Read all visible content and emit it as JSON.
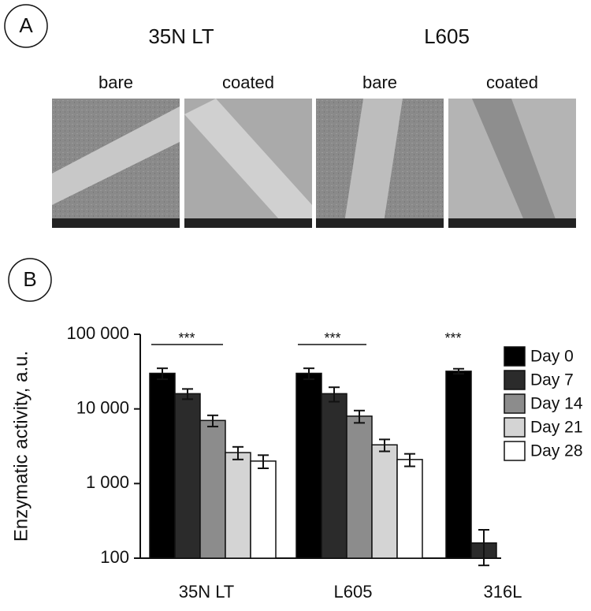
{
  "panel_a": {
    "label": "A",
    "groups": [
      {
        "title": "35N LT",
        "images": [
          "bare",
          "coated"
        ]
      },
      {
        "title": "L605",
        "images": [
          "bare",
          "coated"
        ]
      }
    ]
  },
  "chart_data": {
    "type": "bar",
    "panel_label": "B",
    "y_label": "Enzymatic activity, a.u.",
    "log_scale": true,
    "grid": false,
    "legend": "right",
    "categories": [
      "35N LT",
      "L605",
      "316L"
    ],
    "ylim": [
      100,
      100000
    ],
    "yticks": [
      100,
      {
        "value": 1000,
        "label": "1 000"
      },
      {
        "value": 10000,
        "label": "10 000"
      },
      {
        "value": 100000,
        "label": "100 000"
      }
    ],
    "series": [
      {
        "name": "Day 0",
        "color": "#000000",
        "values": [
          30000,
          30000,
          32000
        ],
        "errors": [
          5000,
          5000,
          2500
        ]
      },
      {
        "name": "Day 7",
        "color": "#2b2b2b",
        "values": [
          16000,
          16000,
          160
        ],
        "errors": [
          2500,
          3500,
          80
        ]
      },
      {
        "name": "Day 14",
        "color": "#8c8c8c",
        "values": [
          7000,
          8000,
          null
        ],
        "errors": [
          1200,
          1500,
          null
        ]
      },
      {
        "name": "Day 21",
        "color": "#d4d4d4",
        "values": [
          2600,
          3300,
          null
        ],
        "errors": [
          500,
          600,
          null
        ]
      },
      {
        "name": "Day 28",
        "color": "#ffffff",
        "values": [
          2000,
          2100,
          null
        ],
        "errors": [
          400,
          400,
          null
        ]
      }
    ],
    "annotations": [
      {
        "text": "***"
      },
      {
        "text": "***"
      },
      {
        "text": "***"
      }
    ]
  }
}
